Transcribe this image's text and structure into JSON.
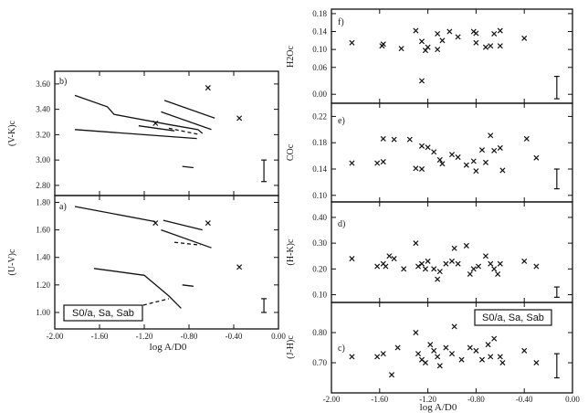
{
  "chart_data": [
    {
      "id": "b",
      "type": "scatter",
      "panel_label": "b)",
      "ylabel": "(V-K)c",
      "xlim": [
        -2.0,
        0.0
      ],
      "ylim": [
        2.72,
        3.7
      ],
      "yticks": [
        2.8,
        3.0,
        3.2,
        3.4,
        3.6
      ],
      "ytick_labels": [
        "2.80",
        "3.00",
        "3.20",
        "3.40",
        "3.60"
      ],
      "points": [
        {
          "x": -0.63,
          "y": 3.57
        },
        {
          "x": -0.35,
          "y": 3.33
        },
        {
          "x": -1.1,
          "y": 3.29
        }
      ],
      "lines": [
        {
          "style": "solid",
          "points": [
            [
              -1.82,
              3.51
            ],
            [
              -1.53,
              3.42
            ],
            [
              -1.47,
              3.36
            ],
            [
              -0.98,
              3.28
            ],
            [
              -0.72,
              3.24
            ],
            [
              -0.68,
              3.21
            ]
          ]
        },
        {
          "style": "solid",
          "points": [
            [
              -1.82,
              3.24
            ],
            [
              -0.73,
              3.17
            ]
          ]
        },
        {
          "style": "solid",
          "points": [
            [
              -1.02,
              3.47
            ],
            [
              -0.57,
              3.33
            ]
          ]
        },
        {
          "style": "solid",
          "points": [
            [
              -1.05,
              3.38
            ],
            [
              -0.6,
              3.24
            ]
          ]
        },
        {
          "style": "solid",
          "points": [
            [
              -1.25,
              3.27
            ],
            [
              -0.93,
              3.23
            ]
          ]
        },
        {
          "style": "dashed",
          "points": [
            [
              -0.98,
              3.25
            ],
            [
              -0.7,
              3.2
            ]
          ]
        },
        {
          "style": "solid",
          "points": [
            [
              -0.86,
              2.95
            ],
            [
              -0.76,
              2.94
            ]
          ]
        }
      ],
      "error_bar": {
        "x": -0.13,
        "y_low": 2.83,
        "y_high": 3.0
      }
    },
    {
      "id": "a",
      "type": "scatter",
      "panel_label": "a)",
      "ylabel": "(U-V)c",
      "xlim": [
        -2.0,
        0.0
      ],
      "ylim": [
        0.88,
        1.85
      ],
      "yticks": [
        1.0,
        1.2,
        1.4,
        1.6,
        1.8
      ],
      "ytick_labels": [
        "1.00",
        "1.20",
        "1.40",
        "1.60",
        "1.80"
      ],
      "points": [
        {
          "x": -1.1,
          "y": 1.65
        },
        {
          "x": -0.63,
          "y": 1.65
        },
        {
          "x": -0.35,
          "y": 1.33
        }
      ],
      "lines": [
        {
          "style": "solid",
          "points": [
            [
              -1.82,
              1.77
            ],
            [
              -1.1,
              1.66
            ]
          ]
        },
        {
          "style": "solid",
          "points": [
            [
              -1.03,
              1.67
            ],
            [
              -0.68,
              1.6
            ]
          ]
        },
        {
          "style": "solid",
          "points": [
            [
              -1.05,
              1.6
            ],
            [
              -0.6,
              1.47
            ]
          ]
        },
        {
          "style": "dashed",
          "points": [
            [
              -0.93,
              1.51
            ],
            [
              -0.7,
              1.49
            ]
          ]
        },
        {
          "style": "solid",
          "points": [
            [
              -1.65,
              1.32
            ],
            [
              -1.2,
              1.27
            ],
            [
              -0.98,
              1.12
            ],
            [
              -0.87,
              1.03
            ]
          ]
        },
        {
          "style": "dashed",
          "points": [
            [
              -1.32,
              1.03
            ],
            [
              -0.98,
              1.1
            ]
          ]
        },
        {
          "style": "solid",
          "points": [
            [
              -0.86,
              1.2
            ],
            [
              -0.76,
              1.19
            ]
          ]
        }
      ],
      "error_bar": {
        "x": -0.13,
        "y_low": 1.0,
        "y_high": 1.1
      },
      "legend_box": "S0/a, Sa, Sab"
    },
    {
      "id": "f",
      "type": "scatter",
      "panel_label": "f)",
      "ylabel": "H2Oc",
      "xlim": [
        -2.0,
        0.0
      ],
      "ylim": [
        -0.02,
        0.19
      ],
      "yticks": [
        0.0,
        0.06,
        0.1,
        0.14,
        0.18
      ],
      "ytick_labels": [
        "0.00",
        "0.06",
        "0.10",
        "0.14",
        "0.18"
      ],
      "points": [
        {
          "x": -1.83,
          "y": 0.115
        },
        {
          "x": -1.58,
          "y": 0.108
        },
        {
          "x": -1.57,
          "y": 0.112
        },
        {
          "x": -1.42,
          "y": 0.102
        },
        {
          "x": -1.3,
          "y": 0.142
        },
        {
          "x": -1.25,
          "y": 0.118
        },
        {
          "x": -1.22,
          "y": 0.098
        },
        {
          "x": -1.25,
          "y": 0.03
        },
        {
          "x": -1.2,
          "y": 0.105
        },
        {
          "x": -1.12,
          "y": 0.1
        },
        {
          "x": -1.12,
          "y": 0.135
        },
        {
          "x": -1.08,
          "y": 0.12
        },
        {
          "x": -1.02,
          "y": 0.14
        },
        {
          "x": -0.95,
          "y": 0.128
        },
        {
          "x": -0.82,
          "y": 0.14
        },
        {
          "x": -0.8,
          "y": 0.136
        },
        {
          "x": -0.8,
          "y": 0.115
        },
        {
          "x": -0.72,
          "y": 0.105
        },
        {
          "x": -0.68,
          "y": 0.108
        },
        {
          "x": -0.65,
          "y": 0.135
        },
        {
          "x": -0.6,
          "y": 0.142
        },
        {
          "x": -0.6,
          "y": 0.108
        },
        {
          "x": -0.4,
          "y": 0.125
        }
      ],
      "error_bar": {
        "x": -0.13,
        "y_low": -0.01,
        "y_high": 0.04
      }
    },
    {
      "id": "e",
      "type": "scatter",
      "panel_label": "e)",
      "ylabel": "COc",
      "xlim": [
        -2.0,
        0.0
      ],
      "ylim": [
        0.09,
        0.24
      ],
      "yticks": [
        0.1,
        0.14,
        0.18,
        0.22
      ],
      "ytick_labels": [
        "0.10",
        "0.14",
        "0.18",
        "0.22"
      ],
      "points": [
        {
          "x": -1.83,
          "y": 0.149
        },
        {
          "x": -1.62,
          "y": 0.149
        },
        {
          "x": -1.57,
          "y": 0.186
        },
        {
          "x": -1.57,
          "y": 0.151
        },
        {
          "x": -1.48,
          "y": 0.185
        },
        {
          "x": -1.35,
          "y": 0.185
        },
        {
          "x": -1.3,
          "y": 0.141
        },
        {
          "x": -1.25,
          "y": 0.175
        },
        {
          "x": -1.2,
          "y": 0.173
        },
        {
          "x": -1.25,
          "y": 0.14
        },
        {
          "x": -1.15,
          "y": 0.166
        },
        {
          "x": -1.1,
          "y": 0.154
        },
        {
          "x": -1.08,
          "y": 0.148
        },
        {
          "x": -1.0,
          "y": 0.162
        },
        {
          "x": -0.95,
          "y": 0.158
        },
        {
          "x": -0.88,
          "y": 0.146
        },
        {
          "x": -0.82,
          "y": 0.152
        },
        {
          "x": -0.8,
          "y": 0.137
        },
        {
          "x": -0.75,
          "y": 0.169
        },
        {
          "x": -0.72,
          "y": 0.15
        },
        {
          "x": -0.68,
          "y": 0.191
        },
        {
          "x": -0.65,
          "y": 0.168
        },
        {
          "x": -0.6,
          "y": 0.172
        },
        {
          "x": -0.58,
          "y": 0.138
        },
        {
          "x": -0.38,
          "y": 0.186
        },
        {
          "x": -0.3,
          "y": 0.157
        }
      ],
      "error_bar": {
        "x": -0.13,
        "y_low": 0.11,
        "y_high": 0.14
      }
    },
    {
      "id": "d",
      "type": "scatter",
      "panel_label": "d)",
      "ylabel": "(H-K)c",
      "xlim": [
        -2.0,
        0.0
      ],
      "ylim": [
        0.07,
        0.46
      ],
      "yticks": [
        0.1,
        0.2,
        0.3,
        0.4
      ],
      "ytick_labels": [
        "0.10",
        "0.20",
        "0.30",
        "0.40"
      ],
      "points": [
        {
          "x": -1.83,
          "y": 0.24
        },
        {
          "x": -1.62,
          "y": 0.21
        },
        {
          "x": -1.57,
          "y": 0.22
        },
        {
          "x": -1.55,
          "y": 0.21
        },
        {
          "x": -1.52,
          "y": 0.25
        },
        {
          "x": -1.48,
          "y": 0.24
        },
        {
          "x": -1.4,
          "y": 0.2
        },
        {
          "x": -1.3,
          "y": 0.3
        },
        {
          "x": -1.28,
          "y": 0.21
        },
        {
          "x": -1.25,
          "y": 0.22
        },
        {
          "x": -1.22,
          "y": 0.2
        },
        {
          "x": -1.2,
          "y": 0.23
        },
        {
          "x": -1.15,
          "y": 0.2
        },
        {
          "x": -1.12,
          "y": 0.16
        },
        {
          "x": -1.1,
          "y": 0.19
        },
        {
          "x": -1.05,
          "y": 0.22
        },
        {
          "x": -1.0,
          "y": 0.23
        },
        {
          "x": -0.98,
          "y": 0.28
        },
        {
          "x": -0.95,
          "y": 0.22
        },
        {
          "x": -0.88,
          "y": 0.29
        },
        {
          "x": -0.85,
          "y": 0.18
        },
        {
          "x": -0.82,
          "y": 0.2
        },
        {
          "x": -0.78,
          "y": 0.21
        },
        {
          "x": -0.72,
          "y": 0.25
        },
        {
          "x": -0.68,
          "y": 0.22
        },
        {
          "x": -0.65,
          "y": 0.2
        },
        {
          "x": -0.62,
          "y": 0.18
        },
        {
          "x": -0.6,
          "y": 0.22
        },
        {
          "x": -0.4,
          "y": 0.23
        },
        {
          "x": -0.3,
          "y": 0.21
        }
      ],
      "error_bar": {
        "x": -0.13,
        "y_low": 0.09,
        "y_high": 0.13
      }
    },
    {
      "id": "c",
      "type": "scatter",
      "panel_label": "c)",
      "ylabel": "(J-H)c",
      "xlim": [
        -2.0,
        0.0
      ],
      "ylim": [
        0.6,
        0.9
      ],
      "yticks": [
        0.7,
        0.8
      ],
      "ytick_labels": [
        "0.70",
        "0.80"
      ],
      "xticks": [
        -2.0,
        -1.6,
        -1.2,
        -0.8,
        -0.4,
        0.0
      ],
      "xtick_labels": [
        "-2.00",
        "-1.60",
        "-1.20",
        "-0.80",
        "-0.40",
        "0.00"
      ],
      "xlabel": "log A/D0",
      "points": [
        {
          "x": -1.83,
          "y": 0.72
        },
        {
          "x": -1.62,
          "y": 0.72
        },
        {
          "x": -1.57,
          "y": 0.73
        },
        {
          "x": -1.5,
          "y": 0.66
        },
        {
          "x": -1.45,
          "y": 0.75
        },
        {
          "x": -1.3,
          "y": 0.8
        },
        {
          "x": -1.28,
          "y": 0.73
        },
        {
          "x": -1.25,
          "y": 0.71
        },
        {
          "x": -1.22,
          "y": 0.7
        },
        {
          "x": -1.18,
          "y": 0.76
        },
        {
          "x": -1.15,
          "y": 0.74
        },
        {
          "x": -1.12,
          "y": 0.72
        },
        {
          "x": -1.1,
          "y": 0.69
        },
        {
          "x": -1.05,
          "y": 0.75
        },
        {
          "x": -1.0,
          "y": 0.73
        },
        {
          "x": -0.98,
          "y": 0.82
        },
        {
          "x": -0.92,
          "y": 0.71
        },
        {
          "x": -0.85,
          "y": 0.75
        },
        {
          "x": -0.8,
          "y": 0.74
        },
        {
          "x": -0.75,
          "y": 0.71
        },
        {
          "x": -0.7,
          "y": 0.76
        },
        {
          "x": -0.68,
          "y": 0.72
        },
        {
          "x": -0.65,
          "y": 0.78
        },
        {
          "x": -0.6,
          "y": 0.72
        },
        {
          "x": -0.58,
          "y": 0.7
        },
        {
          "x": -0.4,
          "y": 0.74
        },
        {
          "x": -0.3,
          "y": 0.7
        }
      ],
      "error_bar": {
        "x": -0.13,
        "y_low": 0.65,
        "y_high": 0.73
      },
      "legend_box": "S0/a, Sa, Sab"
    }
  ],
  "left_x_axis": {
    "xticks": [
      -2.0,
      -1.6,
      -1.2,
      -0.8,
      -0.4,
      0.0
    ],
    "xtick_labels": [
      "-2.00",
      "-1.60",
      "-1.20",
      "-0.80",
      "-0.40",
      "0.00"
    ],
    "xlabel": "log A/D0"
  }
}
